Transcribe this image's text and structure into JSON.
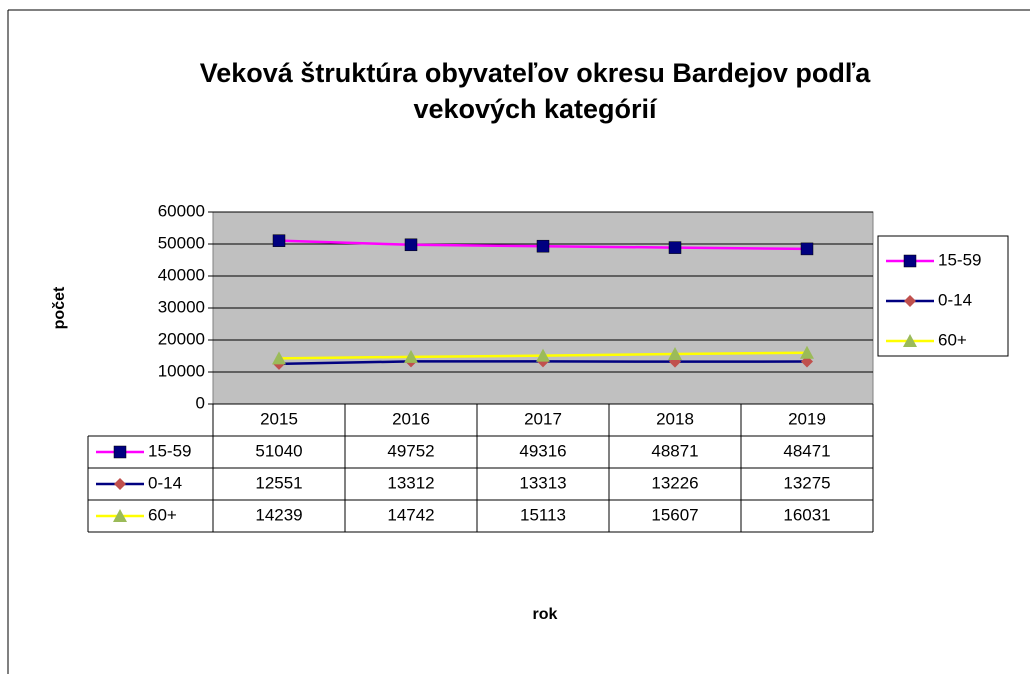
{
  "chart_data": {
    "type": "line",
    "title": [
      "Veková štruktúra obyvateľov okresu Bardejov podľa",
      "vekových kategórií"
    ],
    "x_label": "rok",
    "y_label": "počet",
    "categories": [
      "2015",
      "2016",
      "2017",
      "2018",
      "2019"
    ],
    "series": [
      {
        "name": "15-59",
        "color": "#ff00ff",
        "marker": "square",
        "marker_color": "#000080",
        "values": [
          51040,
          49752,
          49316,
          48871,
          48471
        ]
      },
      {
        "name": "0-14",
        "color": "#000080",
        "marker": "diamond",
        "marker_color": "#c0504d",
        "values": [
          12551,
          13312,
          13313,
          13226,
          13275
        ]
      },
      {
        "name": "60+",
        "color": "#ffff00",
        "marker": "triangle",
        "marker_color": "#9bbb59",
        "values": [
          14239,
          14742,
          15113,
          15607,
          16031
        ]
      }
    ],
    "ylim": [
      0,
      60000
    ],
    "yticks": [
      0,
      10000,
      20000,
      30000,
      40000,
      50000,
      60000
    ],
    "grid": true,
    "plot_background": "#c0c0c0",
    "legend": "right",
    "data_table": true
  }
}
